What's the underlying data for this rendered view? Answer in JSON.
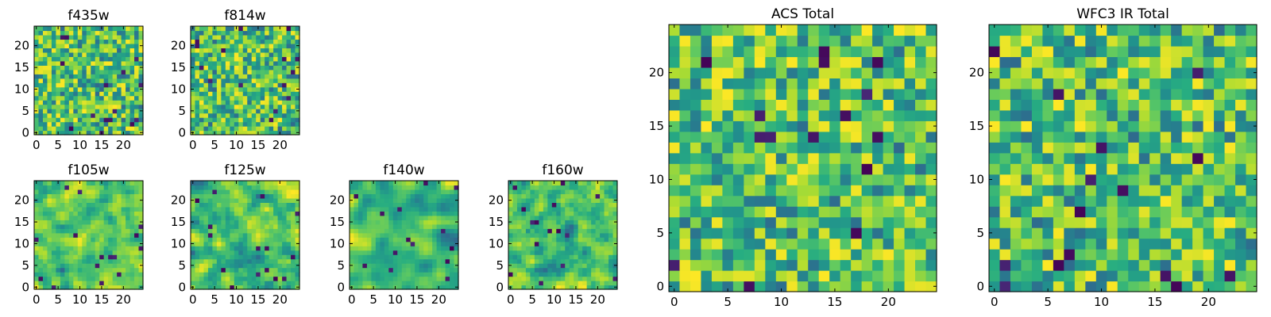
{
  "chart_data": [
    {
      "name": "f435w",
      "type": "heatmap",
      "title": "f435w",
      "xticks": [
        "0",
        "5",
        "10",
        "15",
        "20"
      ],
      "yticks": [
        "0",
        "5",
        "10",
        "15",
        "20"
      ],
      "xlim": [
        -0.5,
        24.5
      ],
      "ylim": [
        -0.5,
        24.5
      ],
      "grid_size": 25,
      "colormap": "viridis",
      "grid": false
    },
    {
      "name": "f814w",
      "type": "heatmap",
      "title": "f814w",
      "xticks": [
        "0",
        "5",
        "10",
        "15",
        "20"
      ],
      "yticks": [
        "0",
        "5",
        "10",
        "15",
        "20"
      ],
      "xlim": [
        -0.5,
        24.5
      ],
      "ylim": [
        -0.5,
        24.5
      ],
      "grid_size": 25,
      "colormap": "viridis",
      "grid": false
    },
    {
      "name": "f105w",
      "type": "heatmap",
      "title": "f105w",
      "xticks": [
        "0",
        "5",
        "10",
        "15",
        "20"
      ],
      "yticks": [
        "0",
        "5",
        "10",
        "15",
        "20"
      ],
      "xlim": [
        -0.5,
        24.5
      ],
      "ylim": [
        -0.5,
        24.5
      ],
      "grid_size": 25,
      "colormap": "viridis",
      "grid": false
    },
    {
      "name": "f125w",
      "type": "heatmap",
      "title": "f125w",
      "xticks": [
        "0",
        "5",
        "10",
        "15",
        "20"
      ],
      "yticks": [
        "0",
        "5",
        "10",
        "15",
        "20"
      ],
      "xlim": [
        -0.5,
        24.5
      ],
      "ylim": [
        -0.5,
        24.5
      ],
      "grid_size": 25,
      "colormap": "viridis",
      "grid": false
    },
    {
      "name": "f140w",
      "type": "heatmap",
      "title": "f140w",
      "xticks": [
        "0",
        "5",
        "10",
        "15",
        "20"
      ],
      "yticks": [
        "0",
        "5",
        "10",
        "15",
        "20"
      ],
      "xlim": [
        -0.5,
        24.5
      ],
      "ylim": [
        -0.5,
        24.5
      ],
      "grid_size": 25,
      "colormap": "viridis",
      "grid": false
    },
    {
      "name": "f160w",
      "type": "heatmap",
      "title": "f160w",
      "xticks": [
        "0",
        "5",
        "10",
        "15",
        "20"
      ],
      "yticks": [
        "0",
        "5",
        "10",
        "15",
        "20"
      ],
      "xlim": [
        -0.5,
        24.5
      ],
      "ylim": [
        -0.5,
        24.5
      ],
      "grid_size": 25,
      "colormap": "viridis",
      "grid": false
    },
    {
      "name": "acs-total",
      "type": "heatmap",
      "title": "ACS Total",
      "xticks": [
        "0",
        "5",
        "10",
        "15",
        "20"
      ],
      "yticks": [
        "0",
        "5",
        "10",
        "15",
        "20"
      ],
      "xlim": [
        -0.5,
        24.5
      ],
      "ylim": [
        -0.5,
        24.5
      ],
      "grid_size": 25,
      "colormap": "viridis",
      "grid": false
    },
    {
      "name": "wfc3-ir-total",
      "type": "heatmap",
      "title": "WFC3 IR Total",
      "xticks": [
        "0",
        "5",
        "10",
        "15",
        "20"
      ],
      "yticks": [
        "0",
        "5",
        "10",
        "15",
        "20"
      ],
      "xlim": [
        -0.5,
        24.5
      ],
      "ylim": [
        -0.5,
        24.5
      ],
      "grid_size": 25,
      "colormap": "viridis",
      "grid": false
    }
  ]
}
